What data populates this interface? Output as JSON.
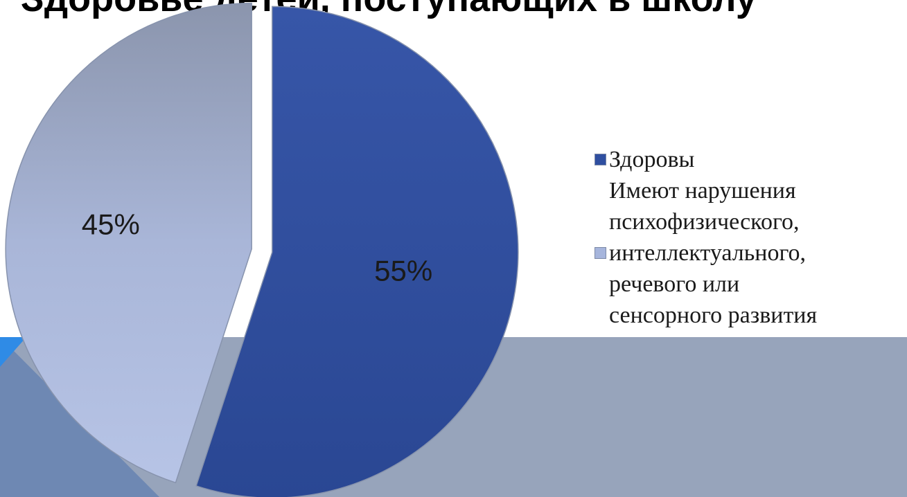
{
  "slide": {
    "band_color": "#97a4bb",
    "accent_color": "#6e88b3",
    "bright_accent": "#2f8be6"
  },
  "chart_data": {
    "type": "pie",
    "title": "Здоровье детей, поступающих в школу",
    "categories": [
      "Здоровы",
      "Имеют нарушения\nпсихофизического,\nинтеллектуального,\nречевого или\nсенсорного развития"
    ],
    "values": [
      55,
      45
    ],
    "data_labels": [
      "55%",
      "45%"
    ],
    "colors": [
      "#2f4fa0",
      "#a6b5dc"
    ],
    "exploded": true,
    "legend_position": "right"
  }
}
